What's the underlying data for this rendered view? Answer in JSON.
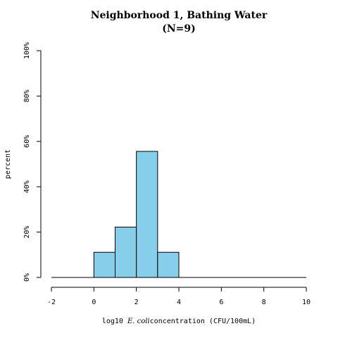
{
  "chart_data": {
    "type": "bar",
    "title": "Neighborhood 1, Bathing Water",
    "subtitle": "(N=9)",
    "ylabel": "percent",
    "xlabel": {
      "prefix": "log10 ",
      "italic": "E. coli",
      "suffix": "concentration (CFU/100mL)"
    },
    "bins": [
      {
        "x0": 0,
        "x1": 1,
        "value": 11.1
      },
      {
        "x0": 1,
        "x1": 2,
        "value": 22.2
      },
      {
        "x0": 2,
        "x1": 3,
        "value": 55.6
      },
      {
        "x0": 3,
        "x1": 4,
        "value": 11.1
      }
    ],
    "xlim": [
      -2,
      10
    ],
    "ylim": [
      0,
      100
    ],
    "x_ticks": [
      "-2",
      "0",
      "2",
      "4",
      "6",
      "8",
      "10"
    ],
    "y_ticks": [
      "0%",
      "20%",
      "40%",
      "60%",
      "80%",
      "100%"
    ],
    "bar_color": "#87CEEB"
  }
}
